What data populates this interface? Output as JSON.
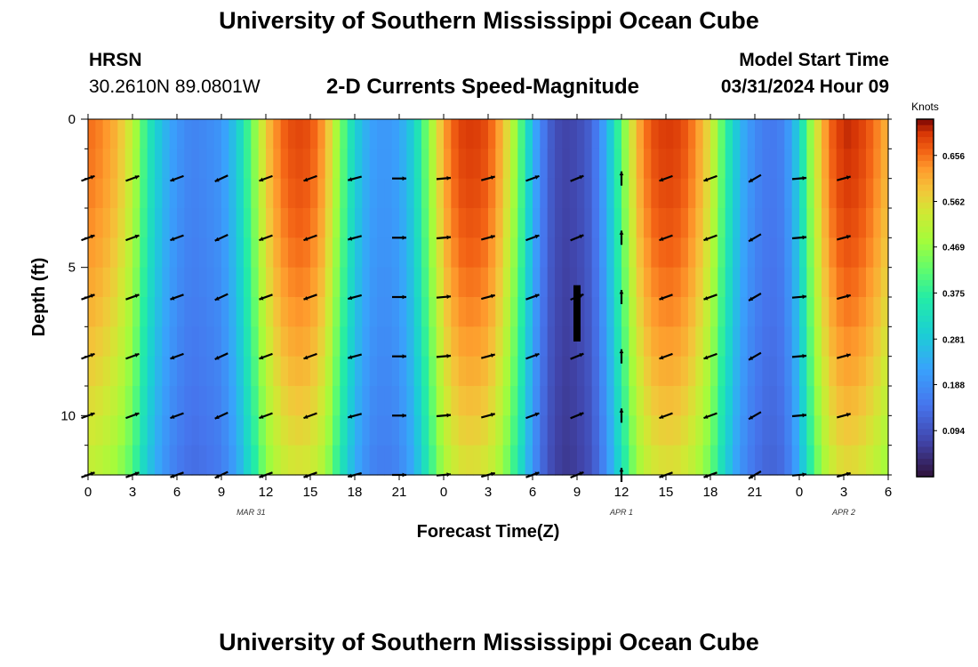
{
  "header": {
    "title": "University of Southern Mississippi Ocean Cube",
    "station": "HRSN",
    "coords": "30.2610N  89.0801W",
    "subtitle": "2-D Currents Speed-Magnitude",
    "start_label": "Model Start Time",
    "start_value": "03/31/2024 Hour 09"
  },
  "footer": {
    "title": "University of Southern Mississippi Ocean Cube"
  },
  "chart_data": {
    "type": "heatmap",
    "title": "2-D Currents Speed-Magnitude",
    "xlabel": "Forecast Time(Z)",
    "ylabel": "Depth (ft)",
    "x_hours": [
      0,
      3,
      6,
      9,
      12,
      15,
      18,
      21,
      24,
      27,
      30,
      33,
      36,
      39,
      42,
      45,
      48,
      51,
      54
    ],
    "x_tick_labels": [
      "0",
      "3",
      "6",
      "9",
      "12",
      "15",
      "18",
      "21",
      "0",
      "3",
      "6",
      "9",
      "12",
      "15",
      "18",
      "21",
      "0",
      "3",
      "6"
    ],
    "date_labels": [
      {
        "hour": 11,
        "text": "MAR 31"
      },
      {
        "hour": 36,
        "text": "APR 1"
      },
      {
        "hour": 51,
        "text": "APR 2"
      }
    ],
    "y_range": [
      0,
      12
    ],
    "y_ticks": [
      0,
      5,
      10
    ],
    "x_range": [
      0,
      54
    ],
    "colorbar": {
      "label": "Knots",
      "min": 0.0,
      "max": 0.73,
      "ticks": [
        "0.656",
        "0.562",
        "0.469",
        "0.375",
        "0.281",
        "0.188",
        "0.094"
      ],
      "tick_values": [
        0.656,
        0.562,
        0.469,
        0.375,
        0.281,
        0.188,
        0.094
      ]
    },
    "speed_profile": {
      "hours": [
        0,
        1,
        2,
        3,
        4,
        5,
        6,
        7,
        8,
        9,
        10,
        11,
        12,
        13,
        14,
        15,
        16,
        17,
        18,
        19,
        20,
        21,
        22,
        23,
        24,
        25,
        26,
        27,
        28,
        29,
        30,
        31,
        32,
        33,
        34,
        35,
        36,
        37,
        38,
        39,
        40,
        41,
        42,
        43,
        44,
        45,
        46,
        47,
        48,
        49,
        50,
        51,
        52,
        53,
        54
      ],
      "surface_knots": [
        0.66,
        0.64,
        0.6,
        0.52,
        0.36,
        0.26,
        0.2,
        0.17,
        0.18,
        0.2,
        0.28,
        0.42,
        0.58,
        0.66,
        0.69,
        0.68,
        0.62,
        0.45,
        0.3,
        0.22,
        0.2,
        0.22,
        0.3,
        0.46,
        0.62,
        0.69,
        0.7,
        0.68,
        0.6,
        0.45,
        0.25,
        0.12,
        0.07,
        0.08,
        0.12,
        0.24,
        0.42,
        0.6,
        0.68,
        0.7,
        0.69,
        0.64,
        0.55,
        0.38,
        0.25,
        0.18,
        0.15,
        0.17,
        0.3,
        0.52,
        0.66,
        0.71,
        0.7,
        0.66,
        0.6
      ],
      "bottom_factor": 0.78
    },
    "arrow_depths": [
      2,
      4,
      6,
      8,
      10,
      12
    ],
    "arrow_hours": [
      0,
      3,
      6,
      9,
      12,
      15,
      18,
      21,
      24,
      27,
      30,
      33,
      36,
      39,
      42,
      45,
      48,
      51
    ],
    "arrow_directions_deg": [
      20,
      20,
      200,
      205,
      200,
      200,
      195,
      0,
      5,
      15,
      20,
      22,
      90,
      200,
      200,
      210,
      5,
      15
    ],
    "icons": {
      "arrow": "current-direction-arrow"
    }
  }
}
